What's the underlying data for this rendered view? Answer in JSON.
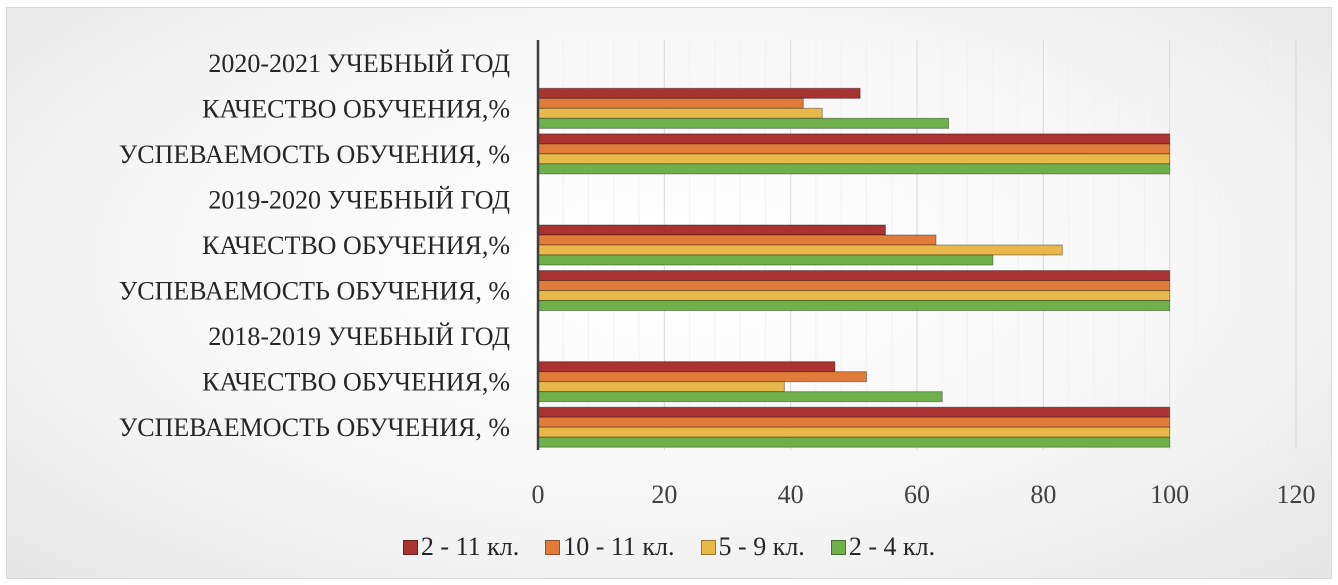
{
  "chart_data": {
    "type": "bar",
    "orientation": "horizontal",
    "categories": [
      "УСПЕВАЕМОСТЬ ОБУЧЕНИЯ, %",
      "КАЧЕСТВО ОБУЧЕНИЯ,%",
      "2018-2019 УЧЕБНЫЙ ГОД",
      "УСПЕВАЕМОСТЬ ОБУЧЕНИЯ, %",
      "КАЧЕСТВО ОБУЧЕНИЯ,%",
      "2019-2020 УЧЕБНЫЙ ГОД",
      "УСПЕВАЕМОСТЬ ОБУЧЕНИЯ, %",
      "КАЧЕСТВО ОБУЧЕНИЯ,%",
      "2020-2021 УЧЕБНЫЙ ГОД"
    ],
    "series": [
      {
        "name": "2 - 11 кл.",
        "color": "#a93232",
        "values": [
          100,
          47,
          null,
          100,
          55,
          null,
          100,
          51,
          null
        ]
      },
      {
        "name": "10 - 11 кл.",
        "color": "#e07b39",
        "values": [
          100,
          52,
          null,
          100,
          63,
          null,
          100,
          42,
          null
        ]
      },
      {
        "name": "5 - 9 кл.",
        "color": "#e8b84a",
        "values": [
          100,
          39,
          null,
          100,
          83,
          null,
          100,
          45,
          null
        ]
      },
      {
        "name": "2 - 4 кл.",
        "color": "#6fb04a",
        "values": [
          100,
          64,
          null,
          100,
          72,
          null,
          100,
          65,
          null
        ]
      }
    ],
    "xlim": [
      0,
      120
    ],
    "xticks": [
      0,
      20,
      40,
      60,
      80,
      100,
      120
    ],
    "grid": true,
    "legend_position": "bottom"
  }
}
